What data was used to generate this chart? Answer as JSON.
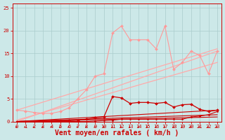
{
  "xlabel": "Vent moyen/en rafales ( km/h )",
  "ylim": [
    0,
    26
  ],
  "xlim": [
    -0.5,
    23.5
  ],
  "yticks": [
    0,
    5,
    10,
    15,
    20,
    25
  ],
  "xticks": [
    0,
    1,
    2,
    3,
    4,
    5,
    6,
    7,
    8,
    9,
    10,
    11,
    12,
    13,
    14,
    15,
    16,
    17,
    18,
    19,
    20,
    21,
    22,
    23
  ],
  "bg_color": "#cce8e8",
  "grid_color": "#aacccc",
  "figsize": [
    3.2,
    2.0
  ],
  "dpi": 100,
  "series": [
    {
      "x": [
        0,
        1,
        2,
        3,
        4,
        5,
        6,
        7,
        8,
        9,
        10,
        11,
        12,
        13,
        14,
        15,
        16,
        17,
        18,
        19,
        20,
        21,
        22,
        23
      ],
      "y": [
        2.5,
        2.3,
        2.0,
        1.8,
        1.8,
        2.2,
        3.0,
        5.0,
        7.0,
        10.0,
        10.5,
        19.5,
        21.0,
        18.0,
        18.0,
        18.0,
        16.0,
        21.0,
        11.5,
        13.0,
        15.5,
        14.5,
        10.5,
        15.5
      ],
      "color": "#ff9999",
      "lw": 0.8,
      "marker": "D",
      "ms": 2.0,
      "zorder": 3
    },
    {
      "x": [
        0,
        23
      ],
      "y": [
        2.5,
        16.0
      ],
      "color": "#ffaaaa",
      "lw": 0.9,
      "marker": null,
      "ms": 0,
      "zorder": 2
    },
    {
      "x": [
        0,
        23
      ],
      "y": [
        0.0,
        15.5
      ],
      "color": "#ffaaaa",
      "lw": 0.9,
      "marker": null,
      "ms": 0,
      "zorder": 2
    },
    {
      "x": [
        0,
        23
      ],
      "y": [
        0.3,
        13.0
      ],
      "color": "#ffaaaa",
      "lw": 0.9,
      "marker": null,
      "ms": 0,
      "zorder": 2
    },
    {
      "x": [
        0,
        1,
        2,
        3,
        4,
        5,
        6,
        7,
        8,
        9,
        10,
        11,
        12,
        13,
        14,
        15,
        16,
        17,
        18,
        19,
        20,
        21,
        22,
        23
      ],
      "y": [
        0.0,
        0.0,
        0.0,
        0.1,
        0.1,
        0.1,
        0.2,
        0.3,
        0.5,
        0.8,
        1.0,
        5.5,
        5.2,
        4.0,
        4.2,
        4.2,
        4.0,
        4.2,
        3.2,
        3.7,
        3.8,
        2.7,
        2.2,
        2.5
      ],
      "color": "#cc0000",
      "lw": 0.9,
      "marker": "D",
      "ms": 2.0,
      "zorder": 4
    },
    {
      "x": [
        0,
        23
      ],
      "y": [
        0.0,
        2.5
      ],
      "color": "#cc0000",
      "lw": 0.8,
      "marker": null,
      "ms": 0,
      "zorder": 2
    },
    {
      "x": [
        0,
        23
      ],
      "y": [
        0.0,
        1.5
      ],
      "color": "#cc0000",
      "lw": 0.8,
      "marker": null,
      "ms": 0,
      "zorder": 2
    },
    {
      "x": [
        0,
        23
      ],
      "y": [
        0.0,
        1.0
      ],
      "color": "#cc0000",
      "lw": 0.8,
      "marker": null,
      "ms": 0,
      "zorder": 2
    },
    {
      "x": [
        0,
        1,
        2,
        3,
        4,
        5,
        6,
        7,
        8,
        9,
        10,
        11,
        12,
        13,
        14,
        15,
        16,
        17,
        18,
        19,
        20,
        21,
        22,
        23
      ],
      "y": [
        0.0,
        0.0,
        0.0,
        0.0,
        0.0,
        0.0,
        0.0,
        0.0,
        0.0,
        0.1,
        0.2,
        0.3,
        0.5,
        0.5,
        0.5,
        0.5,
        0.5,
        0.5,
        0.5,
        0.5,
        1.0,
        1.2,
        1.5,
        2.2
      ],
      "color": "#cc0000",
      "lw": 0.8,
      "marker": "D",
      "ms": 1.5,
      "zorder": 4
    }
  ],
  "arrow_color": "#cc0000",
  "tick_color": "#cc0000",
  "label_color": "#cc0000",
  "xlabel_fontsize": 7,
  "tick_fontsize": 5
}
